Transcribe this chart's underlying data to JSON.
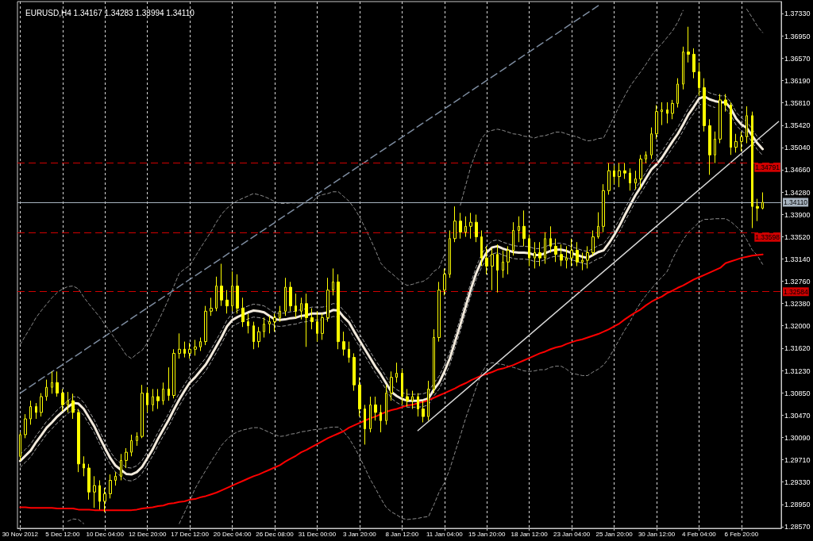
{
  "chart_data": {
    "type": "candlestick",
    "title": "EURUSD,H4 1.34167 1.34283 1.33994 1.34110",
    "color": "#ffff00",
    "grid": "x",
    "marker": "none",
    "categories": [
      "30 Nov 2012",
      null,
      null,
      null,
      null,
      null,
      null,
      null,
      "5 Dec 12:00",
      null,
      null,
      null,
      null,
      null,
      null,
      null,
      "10 Dec 04:00",
      null,
      null,
      null,
      null,
      null,
      null,
      null,
      "12 Dec 20:00",
      null,
      null,
      null,
      null,
      null,
      null,
      null,
      "17 Dec 12:00",
      null,
      null,
      null,
      null,
      null,
      null,
      null,
      "20 Dec 04:00",
      null,
      null,
      null,
      null,
      null,
      null,
      null,
      "26 Dec 08:00",
      null,
      null,
      null,
      null,
      null,
      null,
      null,
      "31 Dec 00:00",
      null,
      null,
      null,
      null,
      null,
      null,
      null,
      "3 Jan 20:00",
      null,
      null,
      null,
      null,
      null,
      null,
      null,
      "8 Jan 12:00",
      null,
      null,
      null,
      null,
      null,
      null,
      null,
      "11 Jan 04:00",
      null,
      null,
      null,
      null,
      null,
      null,
      null,
      "15 Jan 20:00",
      null,
      null,
      null,
      null,
      null,
      null,
      null,
      "18 Jan 12:00",
      null,
      null,
      null,
      null,
      null,
      null,
      null,
      "23 Jan 04:00",
      null,
      null,
      null,
      null,
      null,
      null,
      null,
      "25 Jan 20:00",
      null,
      null,
      null,
      null,
      null,
      null,
      null,
      "30 Jan 12:00",
      null,
      null,
      null,
      null,
      null,
      null,
      null,
      "4 Feb 04:00",
      null,
      null,
      null,
      null,
      null,
      null,
      null,
      "6 Feb 20:00",
      null,
      null,
      null,
      null,
      null,
      null,
      null
    ],
    "ohlc": [
      [
        1.2977,
        1.3018,
        1.297,
        1.3014
      ],
      [
        1.3014,
        1.3049,
        1.3008,
        1.3041
      ],
      [
        1.3041,
        1.3072,
        1.3031,
        1.3062
      ],
      [
        1.3062,
        1.3068,
        1.3041,
        1.3052
      ],
      [
        1.3052,
        1.3085,
        1.3045,
        1.3079
      ],
      [
        1.3079,
        1.3108,
        1.3072,
        1.3095
      ],
      [
        1.3095,
        1.3122,
        1.3084,
        1.3103
      ],
      [
        1.3103,
        1.3122,
        1.3079,
        1.3085
      ],
      [
        1.3085,
        1.3092,
        1.3054,
        1.3065
      ],
      [
        1.3065,
        1.3087,
        1.3052,
        1.3072
      ],
      [
        1.3072,
        1.3084,
        1.3041,
        1.3052
      ],
      [
        1.3052,
        1.3058,
        1.295,
        1.2964
      ],
      [
        1.2964,
        1.2977,
        1.2943,
        1.2957
      ],
      [
        1.2957,
        1.2964,
        1.2903,
        1.2916
      ],
      [
        1.2916,
        1.2943,
        1.2889,
        1.2927
      ],
      [
        1.2927,
        1.2936,
        1.2886,
        1.29
      ],
      [
        1.29,
        1.2923,
        1.2882,
        1.2913
      ],
      [
        1.2913,
        1.2946,
        1.2905,
        1.2936
      ],
      [
        1.2936,
        1.295,
        1.2927,
        1.2943
      ],
      [
        1.2943,
        1.2981,
        1.2936,
        1.297
      ],
      [
        1.297,
        1.2991,
        1.2957,
        1.2984
      ],
      [
        1.2984,
        1.3014,
        1.2977,
        1.3004
      ],
      [
        1.3004,
        1.3018,
        1.2995,
        1.3011
      ],
      [
        1.3011,
        1.3099,
        1.3008,
        1.3085
      ],
      [
        1.3085,
        1.3095,
        1.3052,
        1.3065
      ],
      [
        1.3065,
        1.3092,
        1.3054,
        1.3079
      ],
      [
        1.3079,
        1.3092,
        1.3058,
        1.3072
      ],
      [
        1.3072,
        1.3103,
        1.3065,
        1.3092
      ],
      [
        1.3092,
        1.3129,
        1.3072,
        1.3081
      ],
      [
        1.3081,
        1.316,
        1.3076,
        1.3153
      ],
      [
        1.3153,
        1.3187,
        1.3144,
        1.316
      ],
      [
        1.316,
        1.3173,
        1.3146,
        1.3153
      ],
      [
        1.3153,
        1.3171,
        1.3144,
        1.316
      ],
      [
        1.316,
        1.3176,
        1.3149,
        1.3164
      ],
      [
        1.3164,
        1.318,
        1.3157,
        1.3173
      ],
      [
        1.3173,
        1.3234,
        1.3167,
        1.3225
      ],
      [
        1.3225,
        1.3248,
        1.3217,
        1.323
      ],
      [
        1.323,
        1.3284,
        1.3225,
        1.3268
      ],
      [
        1.3268,
        1.3306,
        1.3234,
        1.3244
      ],
      [
        1.3244,
        1.3261,
        1.3221,
        1.3234
      ],
      [
        1.3234,
        1.3293,
        1.3225,
        1.3268
      ],
      [
        1.3268,
        1.3288,
        1.3221,
        1.323
      ],
      [
        1.323,
        1.3248,
        1.3198,
        1.3207
      ],
      [
        1.3207,
        1.3221,
        1.3187,
        1.32
      ],
      [
        1.32,
        1.3207,
        1.316,
        1.3173
      ],
      [
        1.3173,
        1.3198,
        1.3163,
        1.319
      ],
      [
        1.319,
        1.3214,
        1.318,
        1.3203
      ],
      [
        1.3203,
        1.3217,
        1.3187,
        1.3207
      ],
      [
        1.3207,
        1.3221,
        1.319,
        1.3214
      ],
      [
        1.3214,
        1.3234,
        1.3207,
        1.3225
      ],
      [
        1.3225,
        1.3282,
        1.3217,
        1.3266
      ],
      [
        1.3266,
        1.3275,
        1.3225,
        1.3234
      ],
      [
        1.3234,
        1.3255,
        1.3214,
        1.3225
      ],
      [
        1.3225,
        1.3248,
        1.3211,
        1.3238
      ],
      [
        1.3238,
        1.3255,
        1.3164,
        1.3214
      ],
      [
        1.3214,
        1.323,
        1.3194,
        1.3207
      ],
      [
        1.3207,
        1.3225,
        1.3173,
        1.3187
      ],
      [
        1.3187,
        1.3221,
        1.3176,
        1.3214
      ],
      [
        1.3214,
        1.3282,
        1.3207,
        1.3261
      ],
      [
        1.3261,
        1.3298,
        1.3252,
        1.3275
      ],
      [
        1.3275,
        1.3288,
        1.316,
        1.3173
      ],
      [
        1.3173,
        1.319,
        1.3149,
        1.316
      ],
      [
        1.316,
        1.3173,
        1.3137,
        1.3146
      ],
      [
        1.3146,
        1.3153,
        1.3089,
        1.3099
      ],
      [
        1.3099,
        1.3112,
        1.3045,
        1.3058
      ],
      [
        1.3058,
        1.3065,
        1.2997,
        1.3024
      ],
      [
        1.3024,
        1.3079,
        1.3018,
        1.3065
      ],
      [
        1.3065,
        1.3079,
        1.3038,
        1.3052
      ],
      [
        1.3052,
        1.3065,
        1.3018,
        1.3038
      ],
      [
        1.3038,
        1.3099,
        1.3031,
        1.3085
      ],
      [
        1.3085,
        1.3122,
        1.3072,
        1.3112
      ],
      [
        1.3112,
        1.3137,
        1.3103,
        1.3119
      ],
      [
        1.3119,
        1.3126,
        1.3065,
        1.3079
      ],
      [
        1.3079,
        1.3092,
        1.3062,
        1.3072
      ],
      [
        1.3072,
        1.3089,
        1.3058,
        1.3079
      ],
      [
        1.3079,
        1.3085,
        1.3045,
        1.3058
      ],
      [
        1.3058,
        1.3072,
        1.3035,
        1.3045
      ],
      [
        1.3045,
        1.3106,
        1.3038,
        1.3092
      ],
      [
        1.3092,
        1.3194,
        1.3085,
        1.318
      ],
      [
        1.318,
        1.3275,
        1.3173,
        1.3261
      ],
      [
        1.3261,
        1.3298,
        1.3252,
        1.3288
      ],
      [
        1.3288,
        1.3363,
        1.3282,
        1.3349
      ],
      [
        1.3349,
        1.3404,
        1.3343,
        1.3379
      ],
      [
        1.3379,
        1.3393,
        1.3349,
        1.336
      ],
      [
        1.336,
        1.3387,
        1.3352,
        1.337
      ],
      [
        1.337,
        1.3393,
        1.3349,
        1.3377
      ],
      [
        1.3377,
        1.339,
        1.3343,
        1.3352
      ],
      [
        1.3352,
        1.3363,
        1.3302,
        1.3316
      ],
      [
        1.3316,
        1.3336,
        1.3288,
        1.3302
      ],
      [
        1.3302,
        1.3333,
        1.3261,
        1.3322
      ],
      [
        1.3322,
        1.3339,
        1.3257,
        1.3295
      ],
      [
        1.3295,
        1.3329,
        1.3282,
        1.3309
      ],
      [
        1.3309,
        1.3336,
        1.3288,
        1.3329
      ],
      [
        1.3329,
        1.3377,
        1.332,
        1.3363
      ],
      [
        1.3363,
        1.3387,
        1.3343,
        1.337
      ],
      [
        1.337,
        1.3397,
        1.3336,
        1.3349
      ],
      [
        1.3349,
        1.3356,
        1.3302,
        1.3316
      ],
      [
        1.3316,
        1.3343,
        1.3298,
        1.3325
      ],
      [
        1.3325,
        1.3343,
        1.3302,
        1.3316
      ],
      [
        1.3316,
        1.336,
        1.3306,
        1.3349
      ],
      [
        1.3349,
        1.337,
        1.3325,
        1.3336
      ],
      [
        1.3336,
        1.3349,
        1.3309,
        1.3322
      ],
      [
        1.3322,
        1.3339,
        1.3302,
        1.3312
      ],
      [
        1.3312,
        1.3336,
        1.3298,
        1.3316
      ],
      [
        1.3316,
        1.3349,
        1.3302,
        1.3329
      ],
      [
        1.3329,
        1.3343,
        1.3302,
        1.3309
      ],
      [
        1.3309,
        1.3325,
        1.3295,
        1.3312
      ],
      [
        1.3312,
        1.3336,
        1.3298,
        1.3325
      ],
      [
        1.3325,
        1.3363,
        1.332,
        1.3352
      ],
      [
        1.3352,
        1.3394,
        1.3349,
        1.337
      ],
      [
        1.337,
        1.3442,
        1.336,
        1.3431
      ],
      [
        1.3431,
        1.3478,
        1.3424,
        1.3465
      ],
      [
        1.3465,
        1.3474,
        1.3442,
        1.3455
      ],
      [
        1.3455,
        1.3478,
        1.3437,
        1.3465
      ],
      [
        1.3465,
        1.3478,
        1.3451,
        1.3461
      ],
      [
        1.3461,
        1.3469,
        1.3431,
        1.3444
      ],
      [
        1.3444,
        1.3465,
        1.3433,
        1.3451
      ],
      [
        1.3451,
        1.3492,
        1.3433,
        1.3485
      ],
      [
        1.3485,
        1.3498,
        1.3478,
        1.3492
      ],
      [
        1.3492,
        1.3539,
        1.3485,
        1.3528
      ],
      [
        1.3528,
        1.3577,
        1.3519,
        1.3566
      ],
      [
        1.3566,
        1.3582,
        1.3543,
        1.3569
      ],
      [
        1.3569,
        1.3582,
        1.3546,
        1.3563
      ],
      [
        1.3563,
        1.3586,
        1.3553,
        1.358
      ],
      [
        1.358,
        1.3623,
        1.3573,
        1.3613
      ],
      [
        1.3613,
        1.3677,
        1.3604,
        1.3668
      ],
      [
        1.3668,
        1.3711,
        1.365,
        1.3664
      ],
      [
        1.3664,
        1.3674,
        1.3623,
        1.3634
      ],
      [
        1.3634,
        1.365,
        1.3593,
        1.3607
      ],
      [
        1.3607,
        1.3623,
        1.3532,
        1.3542
      ],
      [
        1.3542,
        1.3553,
        1.3458,
        1.3492
      ],
      [
        1.3492,
        1.3532,
        1.3478,
        1.3519
      ],
      [
        1.3519,
        1.3596,
        1.3512,
        1.3586
      ],
      [
        1.3586,
        1.3596,
        1.3566,
        1.3577
      ],
      [
        1.3577,
        1.3582,
        1.3492,
        1.3505
      ],
      [
        1.3505,
        1.3528,
        1.3496,
        1.3515
      ],
      [
        1.3515,
        1.3532,
        1.3498,
        1.3523
      ],
      [
        1.3523,
        1.3575,
        1.3512,
        1.3559
      ],
      [
        1.3559,
        1.3566,
        1.3367,
        1.3404
      ],
      [
        1.3404,
        1.3417,
        1.3379,
        1.3401
      ],
      [
        1.3401,
        1.3428,
        1.3399,
        1.3411
      ],
      null,
      null,
      null
    ],
    "series": [
      {
        "type": "line",
        "color": "#f2eadc",
        "values": [
          1.2969,
          1.2978,
          1.2987,
          1.3001,
          1.3013,
          1.3026,
          1.3035,
          1.3045,
          1.3053,
          1.3061,
          1.3068,
          1.3067,
          1.3058,
          1.3043,
          1.3028,
          1.3009,
          1.2991,
          1.2974,
          1.2961,
          1.2954,
          1.2947,
          1.2946,
          1.295,
          1.2959,
          1.2974,
          1.2989,
          1.3007,
          1.3023,
          1.3039,
          1.3057,
          1.3074,
          1.3089,
          1.3103,
          1.3112,
          1.3123,
          1.3134,
          1.3149,
          1.3165,
          1.3181,
          1.3199,
          1.321,
          1.3215,
          1.3219,
          1.3223,
          1.3226,
          1.3225,
          1.3223,
          1.3217,
          1.3211,
          1.321,
          1.3211,
          1.3213,
          1.3214,
          1.3217,
          1.3218,
          1.3221,
          1.3221,
          1.3221,
          1.3223,
          1.3227,
          1.3226,
          1.3215,
          1.3206,
          1.319,
          1.3175,
          1.316,
          1.3145,
          1.313,
          1.3117,
          1.3102,
          1.3087,
          1.308,
          1.3075,
          1.3072,
          1.3072,
          1.3072,
          1.3073,
          1.3076,
          1.3091,
          1.3103,
          1.3122,
          1.3144,
          1.3173,
          1.3202,
          1.3233,
          1.3263,
          1.329,
          1.3311,
          1.3326,
          1.3334,
          1.3336,
          1.3332,
          1.3329,
          1.3326,
          1.3325,
          1.3325,
          1.3324,
          1.3321,
          1.3321,
          1.3324,
          1.3328,
          1.333,
          1.333,
          1.3328,
          1.3324,
          1.3321,
          1.3318,
          1.3316,
          1.3321,
          1.3326,
          1.3329,
          1.3341,
          1.3355,
          1.3371,
          1.3389,
          1.3406,
          1.3423,
          1.3437,
          1.3452,
          1.3467,
          1.3476,
          1.3487,
          1.3501,
          1.3515,
          1.3528,
          1.3544,
          1.3561,
          1.3574,
          1.3588,
          1.3592,
          1.3587,
          1.3584,
          1.3582,
          1.3582,
          1.3571,
          1.3554,
          1.3544,
          1.3538,
          1.3525,
          1.3512,
          1.3502,
          null,
          null,
          null
        ]
      },
      {
        "type": "line",
        "color": "#a0a0a0",
        "line_style": "dashed",
        "values": [
          1.298,
          1.2989,
          1.2998,
          1.3012,
          1.3024,
          1.3037,
          1.3046,
          1.3056,
          1.3064,
          1.3072,
          1.3079,
          1.3078,
          1.3069,
          1.3054,
          1.3039,
          1.302,
          1.3002,
          1.2985,
          1.2972,
          1.2965,
          1.2958,
          1.2957,
          1.2961,
          1.297,
          1.2985,
          1.3,
          1.3018,
          1.3034,
          1.305,
          1.3068,
          1.3085,
          1.31,
          1.3114,
          1.3123,
          1.3134,
          1.3145,
          1.316,
          1.3176,
          1.3192,
          1.321,
          1.3221,
          1.3226,
          1.323,
          1.3234,
          1.3237,
          1.3236,
          1.3234,
          1.3228,
          1.3222,
          1.3221,
          1.3222,
          1.3224,
          1.3225,
          1.3228,
          1.3229,
          1.3232,
          1.3232,
          1.3232,
          1.3234,
          1.3238,
          1.3237,
          1.3226,
          1.3217,
          1.3201,
          1.3186,
          1.3171,
          1.3156,
          1.3141,
          1.3128,
          1.3113,
          1.3098,
          1.3091,
          1.3086,
          1.3083,
          1.3083,
          1.3083,
          1.3084,
          1.3087,
          1.3102,
          1.3114,
          1.3133,
          1.3155,
          1.3184,
          1.3213,
          1.3244,
          1.3274,
          1.3301,
          1.3322,
          1.3337,
          1.3345,
          1.3347,
          1.3343,
          1.334,
          1.3337,
          1.3336,
          1.3336,
          1.3335,
          1.3332,
          1.3332,
          1.3335,
          1.3339,
          1.3341,
          1.3341,
          1.3339,
          1.3335,
          1.3332,
          1.3329,
          1.3327,
          1.3332,
          1.3337,
          1.334,
          1.3352,
          1.3366,
          1.3382,
          1.34,
          1.3417,
          1.3434,
          1.3448,
          1.3463,
          1.3478,
          1.3487,
          1.3498,
          1.3512,
          1.3526,
          1.3539,
          1.3555,
          1.3572,
          1.3585,
          1.3599,
          1.3603,
          1.3598,
          1.3595,
          1.3593,
          1.3593,
          1.3582,
          1.3565,
          1.3555,
          1.3549,
          1.3536,
          1.3523,
          1.3513,
          null,
          null,
          null
        ]
      },
      {
        "type": "line",
        "color": "#a0a0a0",
        "line_style": "dashed",
        "values": [
          1.2958,
          1.2967,
          1.2976,
          1.299,
          1.3002,
          1.3015,
          1.3024,
          1.3034,
          1.3042,
          1.305,
          1.3057,
          1.3056,
          1.3047,
          1.3032,
          1.3017,
          1.2998,
          1.298,
          1.2963,
          1.295,
          1.2943,
          1.2936,
          1.2935,
          1.2939,
          1.2948,
          1.2963,
          1.2978,
          1.2996,
          1.3012,
          1.3028,
          1.3046,
          1.3063,
          1.3078,
          1.3092,
          1.3101,
          1.3112,
          1.3123,
          1.3138,
          1.3154,
          1.317,
          1.3188,
          1.3199,
          1.3204,
          1.3208,
          1.3212,
          1.3215,
          1.3214,
          1.3212,
          1.3206,
          1.32,
          1.3199,
          1.32,
          1.3202,
          1.3203,
          1.3206,
          1.3207,
          1.321,
          1.321,
          1.321,
          1.3212,
          1.3216,
          1.3215,
          1.3204,
          1.3195,
          1.3179,
          1.3164,
          1.3149,
          1.3134,
          1.3119,
          1.3106,
          1.3091,
          1.3076,
          1.3069,
          1.3064,
          1.3061,
          1.3061,
          1.3061,
          1.3062,
          1.3065,
          1.308,
          1.3092,
          1.3111,
          1.3133,
          1.3162,
          1.3191,
          1.3222,
          1.3252,
          1.3279,
          1.33,
          1.3315,
          1.3323,
          1.3325,
          1.3321,
          1.3318,
          1.3315,
          1.3314,
          1.3314,
          1.3313,
          1.331,
          1.331,
          1.3313,
          1.3317,
          1.3319,
          1.3319,
          1.3317,
          1.3313,
          1.331,
          1.3307,
          1.3305,
          1.331,
          1.3315,
          1.3318,
          1.333,
          1.3344,
          1.336,
          1.3378,
          1.3395,
          1.3412,
          1.3426,
          1.3441,
          1.3456,
          1.3465,
          1.3476,
          1.349,
          1.3504,
          1.3517,
          1.3533,
          1.355,
          1.3563,
          1.3577,
          1.3581,
          1.3576,
          1.3573,
          null,
          1.3571,
          1.356,
          1.3543,
          1.3533,
          1.3527,
          1.3514,
          1.3501,
          1.3491,
          null,
          null,
          null
        ]
      },
      {
        "type": "line",
        "color": "#8c8c8c",
        "line_style": "dashed",
        "values": [
          1.3168,
          1.3183,
          1.3198,
          1.3214,
          1.3226,
          1.3237,
          1.3248,
          1.3257,
          1.3263,
          1.3267,
          1.3268,
          1.3263,
          1.3249,
          1.3237,
          1.3226,
          1.3215,
          1.3202,
          1.319,
          1.3176,
          1.3164,
          1.315,
          1.3144,
          1.3152,
          1.3158,
          1.3171,
          1.319,
          1.3207,
          1.3226,
          1.3246,
          1.3268,
          1.329,
          1.3297,
          1.3303,
          1.3318,
          1.3333,
          1.3347,
          1.3361,
          1.3377,
          1.3391,
          1.3401,
          1.3408,
          1.3414,
          1.3418,
          1.3422,
          1.3426,
          1.3424,
          1.3421,
          1.3417,
          1.3412,
          1.3409,
          1.3409,
          1.341,
          1.341,
          1.341,
          1.341,
          1.341,
          1.3421,
          1.3424,
          1.3426,
          1.3429,
          1.3429,
          1.3421,
          1.3413,
          1.3401,
          1.3386,
          1.3368,
          1.3349,
          1.3329,
          1.3307,
          1.3297,
          1.329,
          1.3282,
          1.3274,
          1.3269,
          1.3271,
          1.3274,
          1.3276,
          1.3282,
          1.3293,
          1.3299,
          1.3322,
          null,
          null,
          1.3406,
          1.344,
          1.3473,
          1.3498,
          1.352,
          1.3531,
          1.3534,
          1.3536,
          1.3534,
          1.3531,
          1.3528,
          1.3527,
          1.3524,
          1.3523,
          1.3521,
          1.3524,
          1.3525,
          1.3528,
          1.3531,
          1.3531,
          1.3528,
          1.3525,
          1.3523,
          1.3519,
          1.3516,
          1.3517,
          1.352,
          1.3521,
          1.3539,
          1.3558,
          1.3576,
          1.3593,
          1.3609,
          1.3622,
          1.3634,
          1.3647,
          1.3661,
          1.3673,
          1.3682,
          1.3693,
          1.3704,
          1.3719,
          1.3739,
          null,
          null,
          null,
          null,
          null,
          null,
          null,
          null,
          null,
          null,
          null,
          1.3741,
          1.3727,
          1.3712,
          1.3701,
          null,
          null,
          null
        ]
      },
      {
        "type": "line",
        "color": "#8c8c8c",
        "line_style": "dashed",
        "values": [
          null,
          null,
          null,
          null,
          null,
          null,
          null,
          null,
          null,
          1.2866,
          1.287,
          1.2869,
          1.2862,
          null,
          null,
          null,
          null,
          null,
          null,
          null,
          null,
          null,
          null,
          null,
          null,
          null,
          null,
          null,
          null,
          null,
          1.2862,
          1.2881,
          1.2901,
          1.2922,
          1.2938,
          1.2953,
          1.2968,
          1.2982,
          1.2996,
          1.3006,
          1.3014,
          1.3019,
          1.3022,
          1.3024,
          1.3026,
          1.3026,
          1.3022,
          1.3018,
          1.3014,
          1.3011,
          1.3012,
          1.3015,
          1.3016,
          1.3019,
          1.302,
          1.3022,
          1.3023,
          1.3024,
          1.3026,
          1.3027,
          1.3027,
          1.3019,
          1.3008,
          1.2993,
          1.2976,
          1.2957,
          1.2938,
          1.2922,
          1.2905,
          1.289,
          1.2882,
          1.2877,
          1.2871,
          1.2869,
          1.287,
          1.2871,
          1.2873,
          1.2874,
          1.2894,
          1.2916,
          1.2932,
          1.2955,
          1.2984,
          1.3012,
          1.3042,
          1.3068,
          1.3095,
          1.3119,
          1.3134,
          1.3137,
          1.3135,
          1.3134,
          1.3131,
          1.3129,
          1.3126,
          1.3123,
          1.3122,
          1.3123,
          1.3125,
          1.3125,
          1.3129,
          1.3131,
          1.3131,
          1.3126,
          1.3119,
          1.3117,
          1.3115,
          1.3115,
          1.3121,
          1.3126,
          1.3133,
          1.3145,
          1.3161,
          1.3177,
          1.3193,
          1.3207,
          1.3225,
          1.324,
          1.3252,
          1.3263,
          1.3274,
          1.3283,
          1.3293,
          1.3314,
          1.3332,
          1.3347,
          1.336,
          1.3368,
          1.3377,
          1.3382,
          1.3382,
          1.3383,
          1.3383,
          1.3383,
          1.3378,
          1.337,
          1.3361,
          1.3347,
          1.333,
          1.332,
          1.3305,
          null,
          null,
          null
        ]
      },
      {
        "type": "line",
        "color": "#ff0000",
        "values": [
          1.289,
          1.289,
          1.2889,
          1.2889,
          1.2889,
          1.2889,
          1.2889,
          1.2888,
          1.2888,
          1.2888,
          1.2888,
          1.2886,
          1.2886,
          1.2886,
          1.2885,
          1.2885,
          1.2885,
          1.2885,
          1.2885,
          1.2885,
          1.2885,
          1.2885,
          1.2886,
          1.2888,
          1.2889,
          1.289,
          1.2892,
          1.2893,
          1.2896,
          1.2897,
          1.2899,
          1.29,
          1.2903,
          1.2904,
          1.2907,
          1.2909,
          1.2912,
          1.2915,
          1.2919,
          1.2923,
          1.2927,
          1.2931,
          1.2935,
          1.2939,
          1.2943,
          1.2946,
          1.295,
          1.2954,
          1.2958,
          1.2962,
          1.2968,
          1.2973,
          1.2978,
          1.2984,
          1.2988,
          1.2993,
          1.2998,
          1.3003,
          1.3008,
          1.3012,
          1.3016,
          1.302,
          1.3026,
          1.303,
          1.3034,
          1.3038,
          1.3042,
          1.3045,
          1.3049,
          1.3053,
          1.3056,
          1.3058,
          1.3061,
          1.3064,
          1.3065,
          1.3068,
          1.307,
          1.3073,
          1.3077,
          1.3081,
          1.3085,
          1.3089,
          1.3093,
          1.3098,
          1.3102,
          1.3107,
          1.3111,
          1.3115,
          1.3118,
          1.3121,
          1.3125,
          1.3127,
          1.313,
          1.3133,
          1.3137,
          1.3141,
          1.3145,
          1.3149,
          1.3153,
          1.3156,
          1.316,
          1.3163,
          1.3165,
          1.3169,
          1.3172,
          1.3175,
          1.3177,
          1.318,
          1.3183,
          1.3186,
          1.319,
          1.3194,
          1.3199,
          1.3204,
          1.3211,
          1.3217,
          1.3223,
          1.3228,
          1.3235,
          1.3241,
          1.3246,
          1.325,
          1.3256,
          1.326,
          1.3265,
          1.3269,
          1.3274,
          1.3279,
          1.3283,
          1.3287,
          1.3291,
          1.3295,
          1.3299,
          1.3307,
          1.331,
          1.3313,
          1.3316,
          1.3318,
          1.332,
          1.3321,
          1.3322,
          null,
          null,
          null
        ]
      },
      {
        "type": "line",
        "color": "#7d8ca0",
        "line_style": "dashed",
        "values": [
          1.3085,
          null,
          null,
          null,
          null,
          null,
          null,
          null,
          null,
          null,
          null,
          null,
          null,
          null,
          null,
          null,
          null,
          null,
          null,
          null,
          null,
          null,
          null,
          null,
          null,
          null,
          null,
          null,
          null,
          null,
          null,
          null,
          null,
          null,
          null,
          null,
          null,
          null,
          null,
          null,
          null,
          null,
          null,
          null,
          null,
          null,
          null,
          null,
          null,
          null,
          null,
          null,
          null,
          null,
          null,
          null,
          null,
          null,
          null,
          null,
          null,
          null,
          null,
          null,
          null,
          null,
          null,
          null,
          null,
          null,
          null,
          null,
          null,
          null,
          null,
          null,
          null,
          null,
          null,
          null,
          null,
          null,
          null,
          null,
          null,
          null,
          null,
          null,
          null,
          null,
          null,
          null,
          null,
          null,
          null,
          null,
          null,
          null,
          null,
          null,
          null,
          null,
          null,
          null,
          null,
          null,
          null,
          null,
          null,
          1.3747,
          null,
          null,
          null,
          null,
          null,
          null,
          null,
          null,
          null,
          null,
          null,
          null,
          null,
          null,
          null,
          null,
          null,
          null,
          null,
          null,
          null,
          null,
          null,
          null,
          null,
          null,
          null,
          null,
          null,
          null,
          null,
          null,
          null,
          null
        ]
      },
      {
        "type": "line",
        "color": "#d8d8d8",
        "values": [
          null,
          null,
          null,
          null,
          null,
          null,
          null,
          null,
          null,
          null,
          null,
          null,
          null,
          null,
          null,
          null,
          null,
          null,
          null,
          null,
          null,
          null,
          null,
          null,
          null,
          null,
          null,
          null,
          null,
          null,
          null,
          null,
          null,
          null,
          null,
          null,
          null,
          null,
          null,
          null,
          null,
          null,
          null,
          null,
          null,
          null,
          null,
          null,
          null,
          null,
          null,
          null,
          null,
          null,
          null,
          null,
          null,
          null,
          null,
          null,
          null,
          null,
          null,
          null,
          null,
          null,
          null,
          null,
          null,
          null,
          null,
          null,
          null,
          null,
          null,
          1.3021,
          null,
          null,
          null,
          null,
          null,
          null,
          null,
          null,
          null,
          null,
          null,
          null,
          null,
          null,
          null,
          null,
          null,
          null,
          null,
          null,
          null,
          null,
          null,
          null,
          null,
          null,
          null,
          null,
          null,
          null,
          null,
          null,
          null,
          null,
          null,
          null,
          null,
          null,
          null,
          null,
          null,
          null,
          null,
          null,
          null,
          null,
          null,
          null,
          null,
          null,
          null,
          null,
          null,
          null,
          null,
          null,
          null,
          null,
          null,
          null,
          null,
          null,
          null,
          null,
          null,
          null,
          null,
          1.3549
        ]
      }
    ],
    "ylim": [
      1.2854,
      1.3754
    ],
    "yticks": [
      {
        "value": 1.3733,
        "label": "1.37330"
      },
      {
        "value": 1.3695,
        "label": "1.36950"
      },
      {
        "value": 1.3657,
        "label": "1.36570"
      },
      {
        "value": 1.3619,
        "label": "1.36190"
      },
      {
        "value": 1.3581,
        "label": "1.35810"
      },
      {
        "value": 1.3542,
        "label": "1.35420"
      },
      {
        "value": 1.3504,
        "label": "1.35040"
      },
      {
        "value": 1.3466,
        "label": "1.34660"
      },
      {
        "value": 1.3428,
        "label": "1.34280"
      },
      {
        "value": 1.339,
        "label": "1.33900"
      },
      {
        "value": 1.3352,
        "label": "1.33520"
      },
      {
        "value": 1.3314,
        "label": "1.33140"
      },
      {
        "value": 1.3276,
        "label": "1.32760"
      },
      {
        "value": 1.3238,
        "label": "1.32380"
      },
      {
        "value": 1.32,
        "label": "1.32000"
      },
      {
        "value": 1.3162,
        "label": "1.31620"
      },
      {
        "value": 1.3123,
        "label": "1.31230"
      },
      {
        "value": 1.3085,
        "label": "1.30850"
      },
      {
        "value": 1.3047,
        "label": "1.30470"
      },
      {
        "value": 1.3009,
        "label": "1.30090"
      },
      {
        "value": 1.2971,
        "label": "1.29710"
      },
      {
        "value": 1.2933,
        "label": "1.29330"
      },
      {
        "value": 1.2895,
        "label": "1.28950"
      },
      {
        "value": 1.2857,
        "label": "1.28570"
      }
    ],
    "ref_lines": [
      {
        "axis": "y",
        "value": 1.34791,
        "label": "1.34791",
        "color": "#d00000",
        "line_style": "dashed"
      },
      {
        "axis": "y",
        "value": 1.33598,
        "label": "1.33598",
        "color": "#d00000",
        "line_style": "dashed"
      },
      {
        "axis": "y",
        "value": 1.32584,
        "label": "1.32584",
        "color": "#d00000",
        "line_style": "dashed"
      },
      {
        "axis": "y",
        "value": 1.3411,
        "label": "1.34110",
        "color": "#a8b4c0",
        "line_style": "solid"
      }
    ]
  }
}
